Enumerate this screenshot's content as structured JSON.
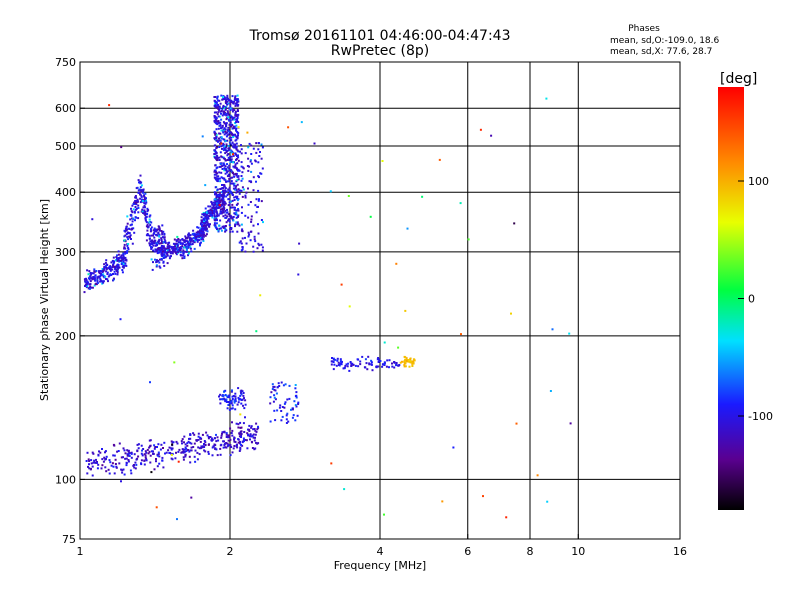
{
  "chart_data": {
    "type": "scatter",
    "title": "Tromsø 20161101 04:46:00-04:47:43",
    "subtitle": "RwPretec (8p)",
    "xlabel": "Frequency [MHz]",
    "ylabel": "Stationary phase Virtual Height [km]",
    "x_scale": "log",
    "y_scale": "log",
    "xlim": [
      1,
      16
    ],
    "ylim": [
      75,
      750
    ],
    "x_ticks": [
      1,
      2,
      4,
      6,
      8,
      10,
      16
    ],
    "x_tick_labels": [
      "1",
      "2",
      "4",
      "6",
      "8",
      "10",
      "16"
    ],
    "y_ticks": [
      75,
      100,
      200,
      300,
      400,
      500,
      600,
      750
    ],
    "y_tick_labels": [
      "75",
      "100",
      "200",
      "300",
      "400",
      "500",
      "600",
      "750"
    ],
    "grid": true,
    "phases_box": {
      "title": "Phases",
      "line1": "mean, sd,O:-109.0, 18.6",
      "line2": "mean, sd,X:  77.6, 28.7"
    },
    "colorbar": {
      "label": "[deg]",
      "range": [
        -180,
        180
      ],
      "ticks": [
        100,
        0,
        -100
      ],
      "tick_labels": [
        "100",
        "0",
        "-100"
      ]
    },
    "traces": [
      {
        "kind": "F-region trace",
        "xrange": [
          1.02,
          2.35
        ],
        "yrange": [
          245,
          640
        ],
        "phase_deg": -105
      },
      {
        "kind": "E-region trace",
        "xrange": [
          1.02,
          2.3
        ],
        "yrange": [
          105,
          155
        ],
        "phase_deg": -110
      },
      {
        "kind": "Es trace",
        "xrange": [
          3.2,
          4.7
        ],
        "yrange": [
          168,
          185
        ],
        "phase_deg": -100
      },
      {
        "kind": "Es trace",
        "xrange": [
          4.4,
          4.7
        ],
        "yrange": [
          170,
          182
        ],
        "phase_deg": 95
      }
    ]
  }
}
